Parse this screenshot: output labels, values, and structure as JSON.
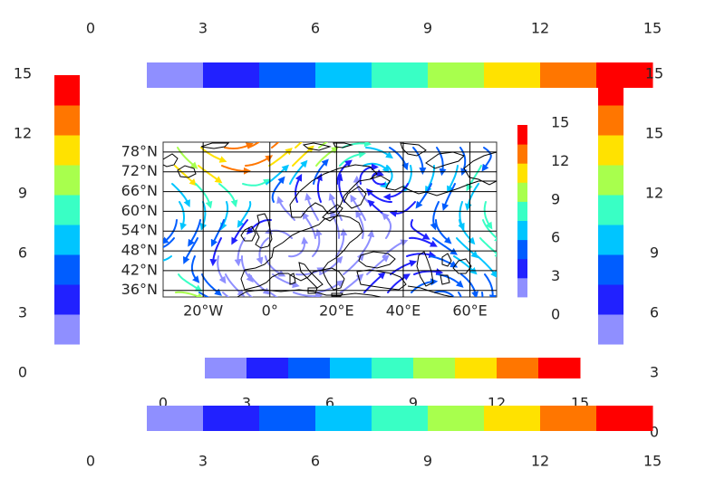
{
  "chart_data": {
    "type": "other",
    "description_free": true,
    "map": {
      "lon_range": [
        -32,
        68
      ],
      "lat_range": [
        34,
        81
      ],
      "xtick_labels": [
        "20°W",
        "0°",
        "20°E",
        "40°E",
        "60°E"
      ],
      "xtick_values": [
        -20,
        0,
        20,
        40,
        60
      ],
      "ytick_labels": [
        "36°N",
        "42°N",
        "48°N",
        "54°N",
        "60°N",
        "66°N",
        "72°N",
        "78°N"
      ],
      "ytick_values": [
        36,
        42,
        48,
        54,
        60,
        66,
        72,
        78
      ],
      "grid": true
    },
    "colorbar": {
      "levels": [
        0,
        1.5,
        3,
        4.5,
        6,
        7.5,
        9,
        10.5,
        12,
        13.5,
        15
      ],
      "colors": [
        "#8f8fff",
        "#2121ff",
        "#005dff",
        "#00c5ff",
        "#39ffc5",
        "#a8ff4d",
        "#ffe200",
        "#ff7600",
        "#ff0000",
        "#ff0000"
      ],
      "inner_ticks": [
        "0",
        "3",
        "6",
        "9",
        "12",
        "15"
      ],
      "top_ticks": [
        "0",
        "3",
        "6",
        "9",
        "12",
        "15"
      ],
      "left_ticks": [
        "15",
        "12",
        "9",
        "6",
        "3",
        "0"
      ],
      "right_ticks": [
        "15",
        "12",
        "9",
        "6",
        "3",
        "0"
      ],
      "bottom_ticks": [
        "0",
        "3",
        "6",
        "9",
        "12",
        "15"
      ],
      "mid_ticks": [
        "0",
        "3",
        "6",
        "9",
        "12",
        "15"
      ]
    }
  }
}
